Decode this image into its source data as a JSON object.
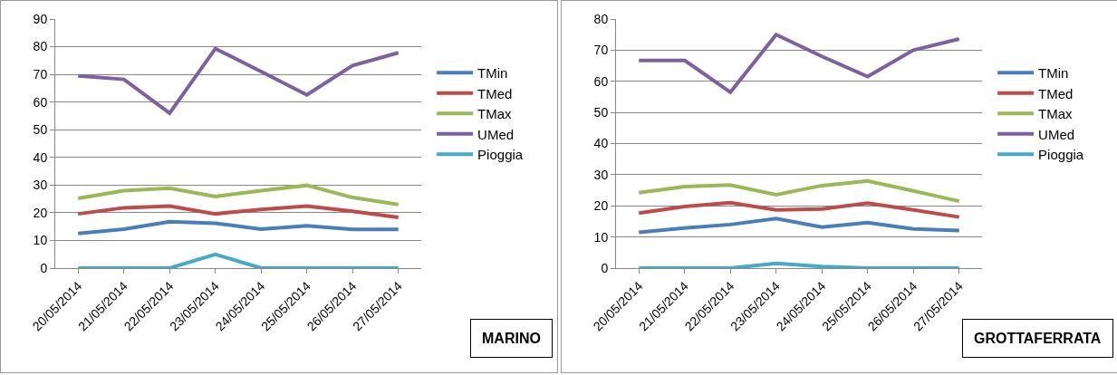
{
  "chart_data": [
    {
      "type": "line",
      "categories": [
        "20/05/2014",
        "21/05/2014",
        "22/05/2014",
        "23/05/2014",
        "24/05/2014",
        "25/05/2014",
        "26/05/2014",
        "27/05/2014"
      ],
      "ylim": [
        0,
        90
      ],
      "yticks": [
        0,
        10,
        20,
        30,
        40,
        50,
        60,
        70,
        80,
        90
      ],
      "grid": "y",
      "legend": "right",
      "marker": "none",
      "line_style": "solid",
      "annotations": [
        "MARINO"
      ],
      "series": [
        {
          "name": "TMin",
          "color": "#4a7ebb",
          "values": [
            12.5,
            14.1,
            16.8,
            16.2,
            14.1,
            15.3,
            14,
            14
          ]
        },
        {
          "name": "TMed",
          "color": "#be4b48",
          "values": [
            19.6,
            21.8,
            22.4,
            19.6,
            21.2,
            22.4,
            20.5,
            18.3
          ]
        },
        {
          "name": "TMax",
          "color": "#98b954",
          "values": [
            25.2,
            28,
            28.9,
            25.9,
            28,
            29.9,
            25.5,
            23
          ]
        },
        {
          "name": "UMed",
          "color": "#7d60a0",
          "values": [
            69.5,
            68.2,
            56,
            79.3,
            71,
            62.6,
            73.2,
            77.8
          ]
        },
        {
          "name": "Pioggia",
          "color": "#46aac5",
          "values": [
            0,
            0,
            0,
            5,
            0,
            0,
            0,
            0
          ]
        }
      ]
    },
    {
      "type": "line",
      "categories": [
        "20/05/2014",
        "21/05/2014",
        "22/05/2014",
        "23/05/2014",
        "24/05/2014",
        "25/05/2014",
        "26/05/2014",
        "27/05/2014"
      ],
      "ylim": [
        0,
        80
      ],
      "yticks": [
        0,
        10,
        20,
        30,
        40,
        50,
        60,
        70,
        80
      ],
      "grid": "y",
      "legend": "right",
      "marker": "none",
      "line_style": "solid",
      "annotations": [
        "GROTTAFERRATA"
      ],
      "series": [
        {
          "name": "TMin",
          "color": "#4a7ebb",
          "values": [
            11.5,
            12.9,
            14,
            15.9,
            13.2,
            14.6,
            12.6,
            12.1
          ]
        },
        {
          "name": "TMed",
          "color": "#be4b48",
          "values": [
            17.7,
            19.8,
            21,
            18.7,
            19,
            20.9,
            18.7,
            16.4
          ]
        },
        {
          "name": "TMax",
          "color": "#98b954",
          "values": [
            24.2,
            26.2,
            26.7,
            23.6,
            26.5,
            28,
            24.8,
            21.5
          ]
        },
        {
          "name": "UMed",
          "color": "#7d60a0",
          "values": [
            66.7,
            66.7,
            56.5,
            75,
            68,
            61.5,
            70,
            73.6
          ]
        },
        {
          "name": "Pioggia",
          "color": "#46aac5",
          "values": [
            0,
            0,
            0,
            1.5,
            0.5,
            0,
            0,
            0
          ]
        }
      ]
    }
  ]
}
